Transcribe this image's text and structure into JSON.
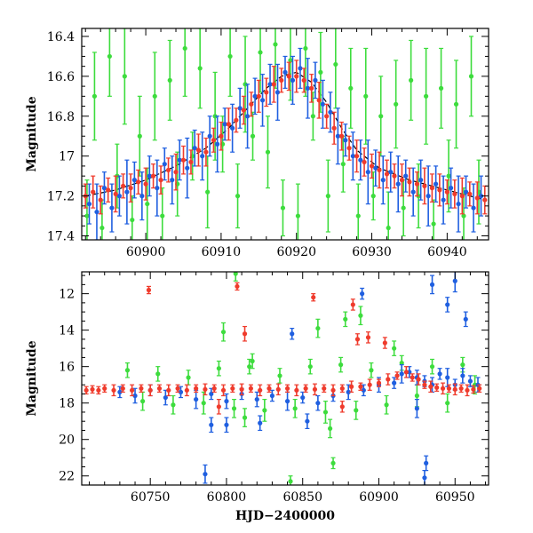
{
  "chart_data": [
    {
      "type": "scatter",
      "title": "",
      "xlabel": "",
      "ylabel": "Magnitude",
      "xlim": [
        60891.5,
        60945.5
      ],
      "ylim": [
        17.42,
        16.36
      ],
      "y_inverted": true,
      "x_ticks": [
        60900,
        60910,
        60920,
        60930,
        60940
      ],
      "x_tick_labels": [
        "60900",
        "60910",
        "60920",
        "60930",
        "60940"
      ],
      "y_ticks": [
        16.4,
        16.6,
        16.8,
        17.0,
        17.2,
        17.4
      ],
      "y_tick_labels": [
        "16.4",
        "16.6",
        "16.8",
        "17",
        "17.2",
        "17.4"
      ],
      "model_curve": {
        "name": "model",
        "color": "#000000",
        "x": [
          60892,
          60896,
          60900,
          60904,
          60908,
          60911,
          60914,
          60916,
          60918,
          60920,
          60922,
          60924,
          60926,
          60928,
          60931,
          60935,
          60940,
          60945
        ],
        "y": [
          17.2,
          17.17,
          17.12,
          17.05,
          16.96,
          16.86,
          16.74,
          16.66,
          16.6,
          16.58,
          16.63,
          16.73,
          16.86,
          16.97,
          17.06,
          17.12,
          17.17,
          17.22
        ]
      },
      "series": [
        {
          "name": "red",
          "color": "#ef3b2c",
          "x": [
            60892,
            60893,
            60894,
            60895,
            60896,
            60897,
            60898,
            60899,
            60900,
            60901,
            60902,
            60903,
            60904,
            60905,
            60906,
            60907,
            60908,
            60909,
            60910,
            60911,
            60912,
            60913,
            60914,
            60915,
            60916,
            60917,
            60918,
            60919,
            60920,
            60921,
            60922,
            60923,
            60924,
            60925,
            60926,
            60927,
            60928,
            60929,
            60930,
            60931,
            60932,
            60933,
            60934,
            60935,
            60936,
            60937,
            60938,
            60939,
            60940,
            60941,
            60942,
            60943,
            60944,
            60945
          ],
          "y": [
            17.2,
            17.18,
            17.22,
            17.17,
            17.19,
            17.15,
            17.16,
            17.13,
            17.14,
            17.1,
            17.12,
            17.07,
            17.08,
            17.02,
            17.03,
            16.97,
            16.98,
            16.92,
            16.9,
            16.84,
            16.82,
            16.77,
            16.74,
            16.7,
            16.68,
            16.64,
            16.62,
            16.6,
            16.6,
            16.62,
            16.66,
            16.72,
            16.8,
            16.86,
            16.9,
            16.96,
            17.0,
            17.03,
            17.05,
            17.07,
            17.09,
            17.1,
            17.12,
            17.13,
            17.14,
            17.15,
            17.16,
            17.17,
            17.18,
            17.19,
            17.2,
            17.19,
            17.21,
            17.22
          ],
          "err": [
            0.06,
            0.08,
            0.07,
            0.06,
            0.09,
            0.06,
            0.07,
            0.06,
            0.08,
            0.06,
            0.07,
            0.06,
            0.09,
            0.07,
            0.06,
            0.08,
            0.07,
            0.06,
            0.07,
            0.08,
            0.06,
            0.07,
            0.06,
            0.08,
            0.07,
            0.09,
            0.06,
            0.07,
            0.08,
            0.06,
            0.07,
            0.09,
            0.06,
            0.08,
            0.07,
            0.06,
            0.08,
            0.07,
            0.06,
            0.09,
            0.07,
            0.06,
            0.08,
            0.07,
            0.06,
            0.09,
            0.07,
            0.08,
            0.06,
            0.07,
            0.09,
            0.06,
            0.08,
            0.07
          ]
        },
        {
          "name": "blue",
          "color": "#1f5fe0",
          "x": [
            60892.5,
            60893.5,
            60894.5,
            60895.5,
            60896.5,
            60897.5,
            60898.5,
            60899.5,
            60900.5,
            60901.5,
            60902.5,
            60903.5,
            60904.5,
            60905.5,
            60906.5,
            60907.5,
            60908.5,
            60909.5,
            60910.5,
            60911.5,
            60912.5,
            60913.5,
            60914.5,
            60915.5,
            60916.5,
            60917.5,
            60918.5,
            60919.5,
            60920.5,
            60921.5,
            60922.5,
            60923.5,
            60924.5,
            60925.5,
            60926.5,
            60927.5,
            60928.5,
            60929.5,
            60930.5,
            60931.5,
            60932.5,
            60933.5,
            60934.5,
            60935.5,
            60936.5,
            60937.5,
            60938.5,
            60939.5,
            60940.5,
            60941.5,
            60942.5,
            60943.5,
            60944.5
          ],
          "y": [
            17.24,
            17.28,
            17.16,
            17.26,
            17.2,
            17.18,
            17.12,
            17.2,
            17.1,
            17.16,
            17.04,
            17.12,
            17.02,
            17.06,
            16.96,
            17.0,
            16.9,
            16.94,
            16.84,
            16.86,
            16.76,
            16.8,
            16.7,
            16.72,
            16.64,
            16.68,
            16.58,
            16.62,
            16.56,
            16.66,
            16.62,
            16.74,
            16.78,
            16.9,
            16.92,
            17.0,
            17.02,
            17.08,
            17.06,
            17.12,
            17.08,
            17.14,
            17.1,
            17.18,
            17.12,
            17.2,
            17.14,
            17.22,
            17.16,
            17.24,
            17.18,
            17.26,
            17.2
          ],
          "err": [
            0.1,
            0.14,
            0.08,
            0.12,
            0.1,
            0.16,
            0.09,
            0.12,
            0.1,
            0.14,
            0.08,
            0.12,
            0.1,
            0.15,
            0.09,
            0.12,
            0.1,
            0.14,
            0.08,
            0.12,
            0.1,
            0.16,
            0.09,
            0.13,
            0.1,
            0.14,
            0.08,
            0.12,
            0.1,
            0.15,
            0.09,
            0.12,
            0.1,
            0.14,
            0.08,
            0.12,
            0.1,
            0.16,
            0.09,
            0.12,
            0.1,
            0.14,
            0.08,
            0.12,
            0.1,
            0.15,
            0.09,
            0.12,
            0.1,
            0.14,
            0.08,
            0.12,
            0.1
          ]
        },
        {
          "name": "green",
          "color": "#3ddc3d",
          "x": [
            60892.2,
            60893.2,
            60894.2,
            60895.2,
            60896.2,
            60897.2,
            60898.2,
            60899.2,
            60900.2,
            60901.2,
            60902.2,
            60903.2,
            60904.2,
            60905.2,
            60906.2,
            60907.2,
            60908.2,
            60909.2,
            60910.2,
            60911.2,
            60912.2,
            60913.2,
            60914.2,
            60915.2,
            60916.2,
            60917.2,
            60918.2,
            60919.2,
            60920.2,
            60921.2,
            60922.2,
            60923.2,
            60924.2,
            60925.2,
            60926.2,
            60927.2,
            60928.2,
            60929.2,
            60930.2,
            60931.2,
            60932.2,
            60933.2,
            60934.2,
            60935.2,
            60936.2,
            60937.2,
            60938.2,
            60939.2,
            60940.2,
            60941.2,
            60942.2,
            60943.2,
            60944.2
          ],
          "y": [
            17.3,
            16.7,
            17.36,
            16.5,
            17.1,
            16.6,
            17.32,
            16.9,
            17.24,
            16.7,
            17.3,
            16.62,
            17.14,
            16.46,
            17.0,
            16.56,
            17.18,
            16.8,
            16.94,
            16.5,
            17.2,
            16.64,
            16.9,
            16.48,
            16.98,
            16.44,
            17.26,
            16.52,
            17.3,
            16.46,
            16.8,
            16.58,
            17.2,
            16.54,
            17.04,
            16.66,
            17.3,
            16.7,
            17.2,
            16.8,
            17.36,
            16.74,
            17.26,
            16.62,
            17.2,
            16.7,
            17.34,
            16.66,
            17.1,
            16.74,
            17.3,
            16.6,
            17.18
          ],
          "err": [
            0.18,
            0.22,
            0.14,
            0.2,
            0.16,
            0.24,
            0.12,
            0.2,
            0.18,
            0.22,
            0.14,
            0.2,
            0.16,
            0.24,
            0.12,
            0.2,
            0.18,
            0.22,
            0.14,
            0.2,
            0.16,
            0.24,
            0.12,
            0.2,
            0.18,
            0.22,
            0.14,
            0.2,
            0.16,
            0.24,
            0.12,
            0.2,
            0.18,
            0.22,
            0.14,
            0.2,
            0.16,
            0.24,
            0.12,
            0.2,
            0.18,
            0.22,
            0.14,
            0.2,
            0.16,
            0.24,
            0.12,
            0.2,
            0.18,
            0.22,
            0.14,
            0.2,
            0.16
          ]
        }
      ]
    },
    {
      "type": "scatter",
      "title": "",
      "xlabel": "HJD−2400000",
      "ylabel": "Magnitude",
      "xlim": [
        60705,
        60972
      ],
      "ylim": [
        22.5,
        10.8
      ],
      "y_inverted": true,
      "x_ticks": [
        60750,
        60800,
        60850,
        60900,
        60950
      ],
      "x_tick_labels": [
        "60750",
        "60800",
        "60850",
        "60900",
        "60950"
      ],
      "y_ticks": [
        12,
        14,
        16,
        18,
        20,
        22
      ],
      "y_tick_labels": [
        "12",
        "14",
        "16",
        "18",
        "20",
        "22"
      ],
      "series": [
        {
          "name": "red",
          "color": "#ef3b2c",
          "x": [
            60708,
            60712,
            60716,
            60720,
            60726,
            60732,
            60738,
            60744,
            60750,
            60756,
            60762,
            60768,
            60774,
            60780,
            60786,
            60792,
            60798,
            60804,
            60810,
            60816,
            60822,
            60828,
            60834,
            60840,
            60846,
            60852,
            60858,
            60864,
            60870,
            60876,
            60882,
            60888,
            60894,
            60900,
            60906,
            60912,
            60918,
            60922,
            60926,
            60930,
            60934,
            60938,
            60942,
            60946,
            60950,
            60954,
            60958,
            60962,
            60966,
            60749,
            60807,
            60812,
            60857,
            60883,
            60893,
            60886,
            60904,
            60795,
            60876
          ],
          "y": [
            17.3,
            17.25,
            17.3,
            17.2,
            17.3,
            17.2,
            17.3,
            17.2,
            17.3,
            17.2,
            17.3,
            17.2,
            17.3,
            17.2,
            17.25,
            17.2,
            17.3,
            17.2,
            17.25,
            17.2,
            17.3,
            17.2,
            17.25,
            17.2,
            17.3,
            17.2,
            17.25,
            17.2,
            17.3,
            17.2,
            17.1,
            17.1,
            17.0,
            16.9,
            16.7,
            16.5,
            16.3,
            16.6,
            16.7,
            17.0,
            17.1,
            17.15,
            17.2,
            17.2,
            17.25,
            17.2,
            17.3,
            17.25,
            17.2,
            11.8,
            11.6,
            14.2,
            12.2,
            12.6,
            14.4,
            14.5,
            14.7,
            18.2,
            18.2
          ],
          "err": [
            0.2,
            0.2,
            0.2,
            0.2,
            0.3,
            0.2,
            0.3,
            0.2,
            0.3,
            0.2,
            0.3,
            0.2,
            0.3,
            0.2,
            0.3,
            0.2,
            0.3,
            0.2,
            0.3,
            0.2,
            0.3,
            0.2,
            0.3,
            0.2,
            0.3,
            0.2,
            0.3,
            0.2,
            0.3,
            0.2,
            0.3,
            0.2,
            0.3,
            0.2,
            0.3,
            0.2,
            0.3,
            0.2,
            0.3,
            0.2,
            0.3,
            0.2,
            0.3,
            0.2,
            0.3,
            0.2,
            0.3,
            0.2,
            0.2,
            0.2,
            0.2,
            0.4,
            0.2,
            0.3,
            0.3,
            0.3,
            0.3,
            0.4,
            0.3
          ]
        },
        {
          "name": "blue",
          "color": "#1f5fe0",
          "x": [
            60730,
            60740,
            60750,
            60760,
            60770,
            60780,
            60790,
            60800,
            60810,
            60820,
            60830,
            60840,
            60850,
            60860,
            60870,
            60880,
            60890,
            60900,
            60910,
            60915,
            60920,
            60925,
            60930,
            60935,
            60940,
            60945,
            60950,
            60955,
            60960,
            60965,
            60786,
            60790,
            60800,
            60822,
            60843,
            60853,
            60889,
            60930,
            60935,
            60950,
            60957,
            60945,
            60925,
            60931
          ],
          "y": [
            17.4,
            17.6,
            17.3,
            17.7,
            17.4,
            17.8,
            17.5,
            17.9,
            17.5,
            17.8,
            17.6,
            17.9,
            17.7,
            18.0,
            17.6,
            17.4,
            17.3,
            17.0,
            16.9,
            16.4,
            16.3,
            16.6,
            16.8,
            17.0,
            16.4,
            16.6,
            17.0,
            16.5,
            16.8,
            17.0,
            21.9,
            19.2,
            19.2,
            19.1,
            14.2,
            19.0,
            12.0,
            22.1,
            11.5,
            11.3,
            13.4,
            12.6,
            18.3,
            21.3
          ],
          "err": [
            0.3,
            0.4,
            0.3,
            0.4,
            0.3,
            0.5,
            0.3,
            0.4,
            0.3,
            0.4,
            0.3,
            0.5,
            0.3,
            0.4,
            0.3,
            0.4,
            0.3,
            0.4,
            0.3,
            0.5,
            0.3,
            0.4,
            0.3,
            0.4,
            0.3,
            0.5,
            0.3,
            0.4,
            0.3,
            0.4,
            0.5,
            0.4,
            0.4,
            0.4,
            0.3,
            0.4,
            0.3,
            0.4,
            0.5,
            0.6,
            0.4,
            0.4,
            0.5,
            0.4
          ]
        },
        {
          "name": "green",
          "color": "#3ddc3d",
          "x": [
            60735,
            60745,
            60755,
            60765,
            60775,
            60785,
            60795,
            60805,
            60815,
            60825,
            60835,
            60845,
            60855,
            60865,
            60875,
            60885,
            60895,
            60905,
            60915,
            60925,
            60935,
            60945,
            60955,
            60963,
            60798,
            60806,
            60812,
            60817,
            60860,
            60868,
            60878,
            60888,
            60870,
            60910,
            60842
          ],
          "y": [
            16.2,
            17.9,
            16.4,
            18.1,
            16.6,
            18.0,
            16.1,
            18.3,
            16.0,
            18.4,
            16.5,
            18.3,
            16.0,
            18.5,
            15.9,
            18.4,
            16.2,
            18.1,
            15.8,
            17.6,
            16.0,
            18.0,
            15.9,
            17.0,
            14.1,
            10.9,
            18.8,
            15.7,
            13.9,
            19.4,
            13.4,
            13.2,
            21.3,
            15.0,
            22.3
          ],
          "err": [
            0.4,
            0.5,
            0.4,
            0.5,
            0.4,
            0.6,
            0.4,
            0.5,
            0.4,
            0.6,
            0.4,
            0.5,
            0.4,
            0.6,
            0.4,
            0.5,
            0.4,
            0.5,
            0.4,
            0.6,
            0.4,
            0.5,
            0.4,
            0.5,
            0.5,
            0.4,
            0.5,
            0.4,
            0.5,
            0.5,
            0.4,
            0.5,
            0.3,
            0.4,
            0.3
          ]
        }
      ]
    }
  ]
}
